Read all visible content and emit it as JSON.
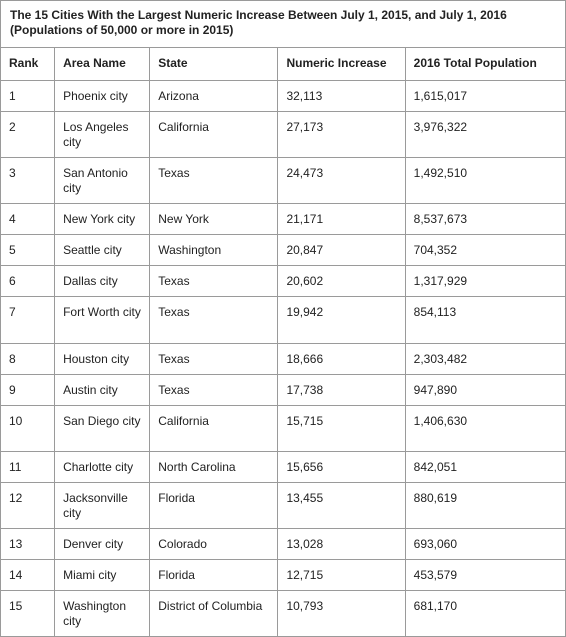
{
  "caption": {
    "line1": "The 15 Cities With the Largest Numeric Increase Between July 1, 2015, and July 1, 2016",
    "line2": "(Populations of 50,000 or more in 2015)"
  },
  "headers": {
    "rank": "Rank",
    "area": "Area Name",
    "state": "State",
    "increase": "Numeric Increase",
    "population": "2016 Total Population"
  },
  "rows": [
    {
      "rank": "1",
      "area": "Phoenix city",
      "state": "Arizona",
      "increase": "32,113",
      "population": "1,615,017"
    },
    {
      "rank": "2",
      "area": "Los Angeles city",
      "state": "California",
      "increase": "27,173",
      "population": "3,976,322"
    },
    {
      "rank": "3",
      "area": "San Antonio city",
      "state": "Texas",
      "increase": "24,473",
      "population": "1,492,510"
    },
    {
      "rank": "4",
      "area": "New York city",
      "state": "New York",
      "increase": "21,171",
      "population": "8,537,673"
    },
    {
      "rank": "5",
      "area": "Seattle city",
      "state": "Washington",
      "increase": "20,847",
      "population": "704,352"
    },
    {
      "rank": "6",
      "area": "Dallas city",
      "state": "Texas",
      "increase": "20,602",
      "population": "1,317,929"
    },
    {
      "rank": "7",
      "area": "Fort Worth city",
      "state": "Texas",
      "increase": "19,942",
      "population": "854,113"
    },
    {
      "rank": "8",
      "area": "Houston city",
      "state": "Texas",
      "increase": "18,666",
      "population": "2,303,482"
    },
    {
      "rank": "9",
      "area": "Austin city",
      "state": "Texas",
      "increase": "17,738",
      "population": "947,890"
    },
    {
      "rank": "10",
      "area": "San Diego city",
      "state": "California",
      "increase": "15,715",
      "population": "1,406,630"
    },
    {
      "rank": "11",
      "area": "Charlotte city",
      "state": "North Carolina",
      "increase": "15,656",
      "population": "842,051"
    },
    {
      "rank": "12",
      "area": "Jacksonville city",
      "state": "Florida",
      "increase": "13,455",
      "population": "880,619"
    },
    {
      "rank": "13",
      "area": "Denver city",
      "state": "Colorado",
      "increase": "13,028",
      "population": "693,060"
    },
    {
      "rank": "14",
      "area": "Miami city",
      "state": "Florida",
      "increase": "12,715",
      "population": "453,579"
    },
    {
      "rank": "15",
      "area": "Washington city",
      "state": "District of Columbia",
      "increase": "10,793",
      "population": "681,170"
    }
  ]
}
